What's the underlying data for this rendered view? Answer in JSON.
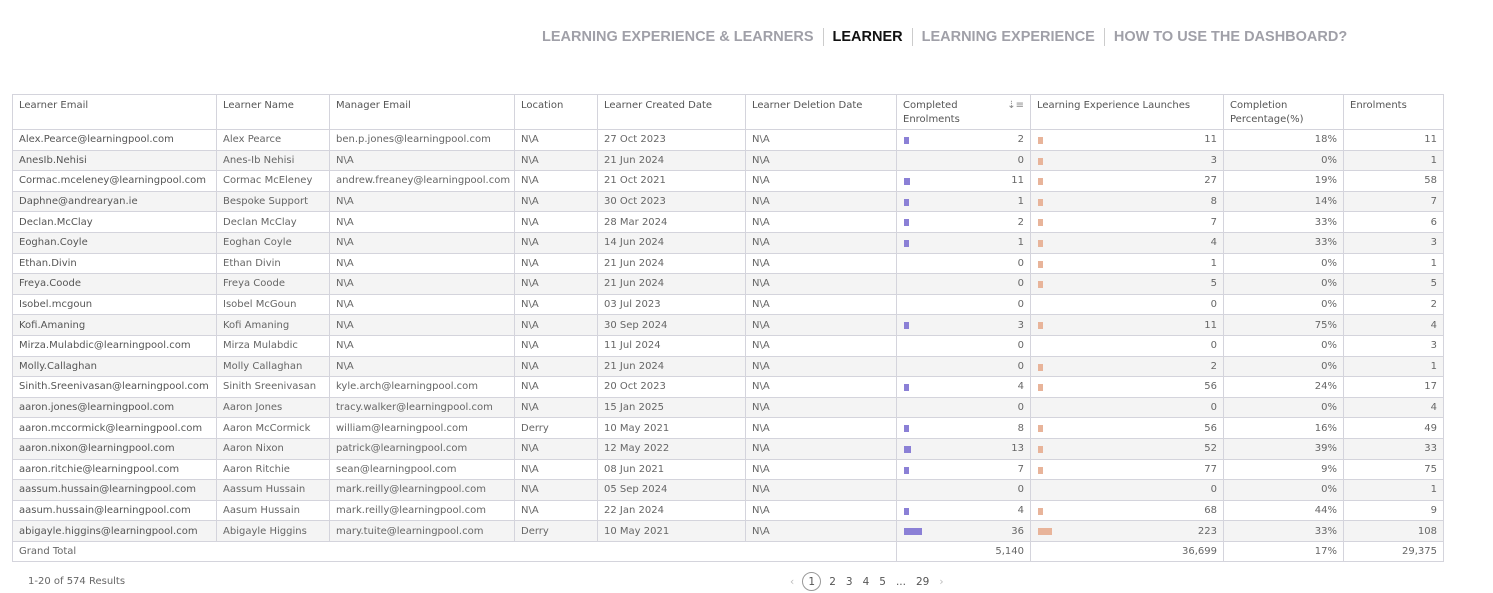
{
  "nav": {
    "tabs": [
      {
        "label": "LEARNING EXPERIENCE & LEARNERS",
        "active": false
      },
      {
        "label": "LEARNER",
        "active": true
      },
      {
        "label": "LEARNING EXPERIENCE",
        "active": false
      },
      {
        "label": "HOW TO USE THE DASHBOARD?",
        "active": false
      }
    ]
  },
  "colors": {
    "completed_bar": "#8b80d6",
    "launches_bar": "#e8b49a"
  },
  "table": {
    "headers": [
      "Learner Email",
      "Learner Name",
      "Manager Email",
      "Location",
      "Learner Created Date",
      "Learner Deletion Date",
      "Completed Enrolments",
      "Learning Experience Launches",
      "Completion Percentage(%)",
      "Enrolments"
    ],
    "sort_icon": "sort-descending-icon",
    "rows": [
      [
        "Alex.Pearce@learningpool.com",
        "Alex Pearce",
        "ben.p.jones@learningpool.com",
        "N\\A",
        "27 Oct 2023",
        "N\\A",
        "2",
        "11",
        "18%",
        "11"
      ],
      [
        "AnesIb.Nehisi",
        "Anes-Ib Nehisi",
        "N\\A",
        "N\\A",
        "21 Jun 2024",
        "N\\A",
        "0",
        "3",
        "0%",
        "1"
      ],
      [
        "Cormac.mceleney@learningpool.com",
        "Cormac McEleney",
        "andrew.freaney@learningpool.com",
        "N\\A",
        "21 Oct 2021",
        "N\\A",
        "11",
        "27",
        "19%",
        "58"
      ],
      [
        "Daphne@andrearyan.ie",
        "Bespoke Support",
        "N\\A",
        "N\\A",
        "30 Oct 2023",
        "N\\A",
        "1",
        "8",
        "14%",
        "7"
      ],
      [
        "Declan.McClay",
        "Declan McClay",
        "N\\A",
        "N\\A",
        "28 Mar 2024",
        "N\\A",
        "2",
        "7",
        "33%",
        "6"
      ],
      [
        "Eoghan.Coyle",
        "Eoghan Coyle",
        "N\\A",
        "N\\A",
        "14 Jun 2024",
        "N\\A",
        "1",
        "4",
        "33%",
        "3"
      ],
      [
        "Ethan.Divin",
        "Ethan Divin",
        "N\\A",
        "N\\A",
        "21 Jun 2024",
        "N\\A",
        "0",
        "1",
        "0%",
        "1"
      ],
      [
        "Freya.Coode",
        "Freya Coode",
        "N\\A",
        "N\\A",
        "21 Jun 2024",
        "N\\A",
        "0",
        "5",
        "0%",
        "5"
      ],
      [
        "Isobel.mcgoun",
        "Isobel McGoun",
        "N\\A",
        "N\\A",
        "03 Jul 2023",
        "N\\A",
        "0",
        "0",
        "0%",
        "2"
      ],
      [
        "Kofi.Amaning",
        "Kofi Amaning",
        "N\\A",
        "N\\A",
        "30 Sep 2024",
        "N\\A",
        "3",
        "11",
        "75%",
        "4"
      ],
      [
        "Mirza.Mulabdic@learningpool.com",
        "Mirza Mulabdic",
        "N\\A",
        "N\\A",
        "11 Jul 2024",
        "N\\A",
        "0",
        "0",
        "0%",
        "3"
      ],
      [
        "Molly.Callaghan",
        "Molly Callaghan",
        "N\\A",
        "N\\A",
        "21 Jun 2024",
        "N\\A",
        "0",
        "2",
        "0%",
        "1"
      ],
      [
        "Sinith.Sreenivasan@learningpool.com",
        "Sinith Sreenivasan",
        "kyle.arch@learningpool.com",
        "N\\A",
        "20 Oct 2023",
        "N\\A",
        "4",
        "56",
        "24%",
        "17"
      ],
      [
        "aaron.jones@learningpool.com",
        "Aaron Jones",
        "tracy.walker@learningpool.com",
        "N\\A",
        "15 Jan 2025",
        "N\\A",
        "0",
        "0",
        "0%",
        "4"
      ],
      [
        "aaron.mccormick@learningpool.com",
        "Aaron McCormick",
        "william@learningpool.com",
        "Derry",
        "10 May 2021",
        "N\\A",
        "8",
        "56",
        "16%",
        "49"
      ],
      [
        "aaron.nixon@learningpool.com",
        "Aaron Nixon",
        "patrick@learningpool.com",
        "N\\A",
        "12 May 2022",
        "N\\A",
        "13",
        "52",
        "39%",
        "33"
      ],
      [
        "aaron.ritchie@learningpool.com",
        "Aaron Ritchie",
        "sean@learningpool.com",
        "N\\A",
        "08 Jun 2021",
        "N\\A",
        "7",
        "77",
        "9%",
        "75"
      ],
      [
        "aassum.hussain@learningpool.com",
        "Aassum Hussain",
        "mark.reilly@learningpool.com",
        "N\\A",
        "05 Sep 2024",
        "N\\A",
        "0",
        "0",
        "0%",
        "1"
      ],
      [
        "aasum.hussain@learningpool.com",
        "Aasum Hussain",
        "mark.reilly@learningpool.com",
        "N\\A",
        "22 Jan 2024",
        "N\\A",
        "4",
        "68",
        "44%",
        "9"
      ],
      [
        "abigayle.higgins@learningpool.com",
        "Abigayle Higgins",
        "mary.tuite@learningpool.com",
        "Derry",
        "10 May 2021",
        "N\\A",
        "36",
        "223",
        "33%",
        "108"
      ]
    ],
    "total": {
      "label": "Grand Total",
      "completed": "5,140",
      "launches": "36,699",
      "percentage": "17%",
      "enrolments": "29,375"
    }
  },
  "footer": {
    "results": "1-20 of 574 Results",
    "pages": [
      "1",
      "2",
      "3",
      "4",
      "5",
      "...",
      "29"
    ],
    "current_page": "1",
    "prev": "‹",
    "next": "›"
  }
}
